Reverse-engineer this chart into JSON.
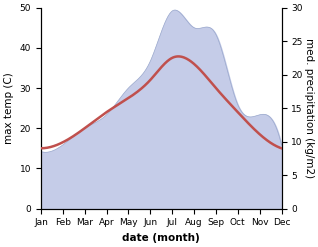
{
  "months": [
    "Jan",
    "Feb",
    "Mar",
    "Apr",
    "May",
    "Jun",
    "Jul",
    "Aug",
    "Sep",
    "Oct",
    "Nov",
    "Dec"
  ],
  "max_temp": [
    15.0,
    16.5,
    20.0,
    24.0,
    27.5,
    32.0,
    37.5,
    36.0,
    30.0,
    24.0,
    18.5,
    15.0
  ],
  "precipitation": [
    8.5,
    9.5,
    12.0,
    14.0,
    18.0,
    22.0,
    29.5,
    27.0,
    26.0,
    15.5,
    14.0,
    9.5
  ],
  "temp_color": "#c0504d",
  "precip_fill_color": "#c5cce8",
  "precip_edge_color": "#9aa8cc",
  "temp_ylim": [
    0,
    50
  ],
  "precip_ylim": [
    0,
    30
  ],
  "temp_yticks": [
    0,
    10,
    20,
    30,
    40,
    50
  ],
  "precip_yticks": [
    0,
    5,
    10,
    15,
    20,
    25,
    30
  ],
  "xlabel": "date (month)",
  "ylabel_left": "max temp (C)",
  "ylabel_right": "med. precipitation (kg/m2)",
  "label_fontsize": 7.5,
  "tick_fontsize": 6.5
}
